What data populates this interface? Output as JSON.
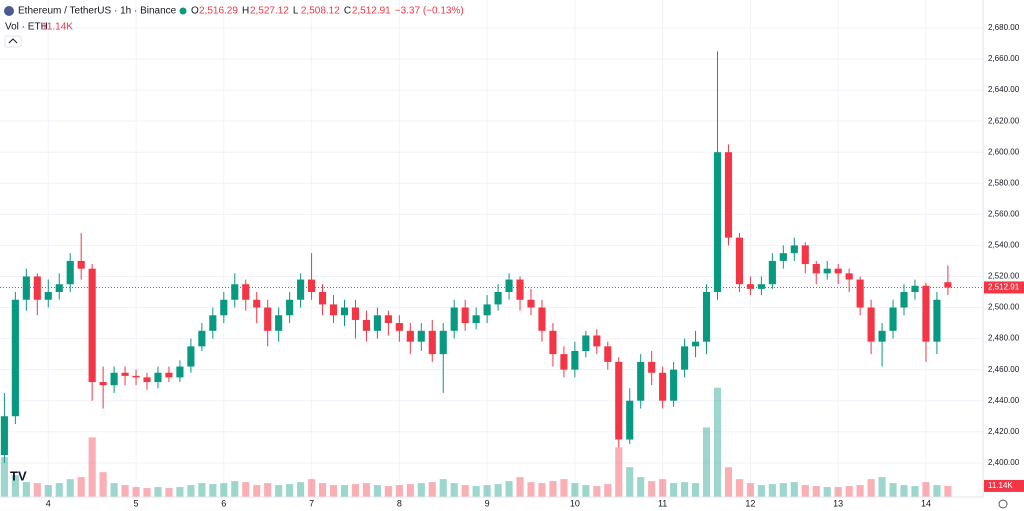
{
  "header": {
    "title": "Ethereum / TetherUS · 1h · Binance",
    "ohlc": [
      {
        "key": "O",
        "value": "2,516.29"
      },
      {
        "key": "H",
        "value": "2,527.12"
      },
      {
        "key": "L",
        "value": "2,508.12"
      },
      {
        "key": "C",
        "value": "2,512.91"
      }
    ],
    "change": "−3.37 (−0.13%)",
    "volume_name": "Vol · ETH",
    "volume_value": "11.14K"
  },
  "chart_data": {
    "type": "candlestick",
    "up_color": "#089981",
    "down_color": "#f23645",
    "grid": true,
    "xlim": [
      3.45,
      14.65
    ],
    "xticks": [
      4,
      5,
      6,
      7,
      8,
      9,
      10,
      11,
      12,
      13,
      14
    ],
    "ylim": [
      2378,
      2698
    ],
    "yticks": [
      {
        "value": 2400,
        "label": "2,400.00"
      },
      {
        "value": 2420,
        "label": "2,420.00"
      },
      {
        "value": 2440,
        "label": "2,440.00"
      },
      {
        "value": 2460,
        "label": "2,460.00"
      },
      {
        "value": 2480,
        "label": "2,480.00"
      },
      {
        "value": 2500,
        "label": "2,500.00"
      },
      {
        "value": 2520,
        "label": "2,520.00"
      },
      {
        "value": 2540,
        "label": "2,540.00"
      },
      {
        "value": 2560,
        "label": "2,560.00"
      },
      {
        "value": 2580,
        "label": "2,580.00"
      },
      {
        "value": 2600,
        "label": "2,600.00"
      },
      {
        "value": 2620,
        "label": "2,620.00"
      },
      {
        "value": 2640,
        "label": "2,640.00"
      },
      {
        "value": 2660,
        "label": "2,660.00"
      },
      {
        "value": 2680,
        "label": "2,680.00"
      }
    ],
    "volume_ylim": [
      0,
      500
    ],
    "x": [
      3.5,
      3.625,
      3.75,
      3.875,
      4,
      4.125,
      4.25,
      4.375,
      4.5,
      4.625,
      4.75,
      4.875,
      5,
      5.125,
      5.25,
      5.375,
      5.5,
      5.625,
      5.75,
      5.875,
      6,
      6.125,
      6.25,
      6.375,
      6.5,
      6.625,
      6.75,
      6.875,
      7,
      7.125,
      7.25,
      7.375,
      7.5,
      7.625,
      7.75,
      7.875,
      8,
      8.125,
      8.25,
      8.375,
      8.5,
      8.625,
      8.75,
      8.875,
      9,
      9.125,
      9.25,
      9.375,
      9.5,
      9.625,
      9.75,
      9.875,
      10,
      10.125,
      10.25,
      10.375,
      10.5,
      10.625,
      10.75,
      10.875,
      11,
      11.125,
      11.25,
      11.375,
      11.5,
      11.625,
      11.75,
      11.875,
      12,
      12.125,
      12.25,
      12.375,
      12.5,
      12.625,
      12.75,
      12.875,
      13,
      13.125,
      13.25,
      13.375,
      13.5,
      13.625,
      13.75,
      13.875,
      14,
      14.125,
      14.25
    ],
    "open": [
      2405,
      2430,
      2505,
      2520,
      2505,
      2510,
      2515,
      2530,
      2525,
      2452,
      2450,
      2458,
      2456,
      2455,
      2452,
      2458,
      2455,
      2462,
      2475,
      2485,
      2495,
      2505,
      2515,
      2505,
      2500,
      2485,
      2495,
      2505,
      2518,
      2510,
      2502,
      2495,
      2500,
      2492,
      2485,
      2495,
      2490,
      2485,
      2478,
      2485,
      2470,
      2485,
      2500,
      2490,
      2495,
      2502,
      2510,
      2518,
      2505,
      2500,
      2485,
      2470,
      2460,
      2472,
      2482,
      2475,
      2465,
      2415,
      2440,
      2465,
      2458,
      2440,
      2460,
      2475,
      2478,
      2510,
      2600,
      2545,
      2515,
      2512,
      2515,
      2530,
      2535,
      2540,
      2528,
      2522,
      2525,
      2522,
      2518,
      2500,
      2478,
      2485,
      2500,
      2510,
      2514,
      2478,
      2516.29
    ],
    "high": [
      2445,
      2510,
      2525,
      2522,
      2518,
      2522,
      2535,
      2548,
      2528,
      2462,
      2462,
      2462,
      2460,
      2458,
      2462,
      2462,
      2466,
      2480,
      2490,
      2500,
      2510,
      2522,
      2518,
      2510,
      2505,
      2500,
      2510,
      2522,
      2535,
      2515,
      2508,
      2505,
      2505,
      2498,
      2500,
      2498,
      2495,
      2490,
      2490,
      2492,
      2490,
      2505,
      2505,
      2500,
      2508,
      2515,
      2522,
      2520,
      2512,
      2505,
      2490,
      2475,
      2478,
      2485,
      2486,
      2478,
      2468,
      2448,
      2470,
      2472,
      2462,
      2465,
      2480,
      2485,
      2515,
      2665,
      2605,
      2548,
      2520,
      2520,
      2535,
      2540,
      2545,
      2542,
      2530,
      2530,
      2528,
      2525,
      2520,
      2505,
      2490,
      2505,
      2515,
      2518,
      2516,
      2510,
      2527.12
    ],
    "low": [
      2400,
      2425,
      2498,
      2495,
      2500,
      2505,
      2510,
      2518,
      2440,
      2435,
      2445,
      2450,
      2450,
      2447,
      2448,
      2452,
      2452,
      2458,
      2472,
      2480,
      2490,
      2500,
      2498,
      2490,
      2475,
      2478,
      2490,
      2500,
      2505,
      2495,
      2490,
      2488,
      2480,
      2478,
      2480,
      2482,
      2478,
      2470,
      2472,
      2465,
      2445,
      2480,
      2485,
      2486,
      2490,
      2498,
      2505,
      2498,
      2495,
      2478,
      2462,
      2455,
      2455,
      2468,
      2470,
      2460,
      2410,
      2412,
      2435,
      2450,
      2435,
      2436,
      2455,
      2468,
      2470,
      2505,
      2540,
      2510,
      2508,
      2508,
      2512,
      2525,
      2530,
      2522,
      2515,
      2518,
      2515,
      2510,
      2495,
      2470,
      2462,
      2480,
      2495,
      2505,
      2465,
      2470,
      2508.12
    ],
    "close": [
      2430,
      2505,
      2520,
      2505,
      2510,
      2515,
      2530,
      2525,
      2452,
      2450,
      2458,
      2456,
      2455,
      2452,
      2458,
      2455,
      2462,
      2475,
      2485,
      2495,
      2505,
      2515,
      2505,
      2500,
      2485,
      2495,
      2505,
      2518,
      2510,
      2502,
      2495,
      2500,
      2492,
      2485,
      2495,
      2490,
      2485,
      2478,
      2485,
      2470,
      2485,
      2500,
      2490,
      2495,
      2502,
      2510,
      2518,
      2505,
      2500,
      2485,
      2470,
      2460,
      2472,
      2482,
      2475,
      2465,
      2415,
      2440,
      2465,
      2458,
      2440,
      2460,
      2475,
      2478,
      2510,
      2600,
      2545,
      2515,
      2512,
      2515,
      2530,
      2535,
      2540,
      2528,
      2522,
      2525,
      2522,
      2518,
      2500,
      2478,
      2485,
      2500,
      2510,
      2514,
      2478,
      2505,
      2512.91
    ],
    "volume": [
      40,
      22,
      15,
      14,
      12,
      14,
      18,
      20,
      60,
      25,
      14,
      12,
      10,
      9,
      10,
      9,
      10,
      12,
      14,
      13,
      14,
      16,
      15,
      12,
      14,
      12,
      13,
      15,
      18,
      14,
      12,
      12,
      13,
      14,
      12,
      11,
      12,
      13,
      14,
      15,
      18,
      14,
      12,
      11,
      12,
      13,
      16,
      20,
      15,
      14,
      16,
      18,
      14,
      12,
      11,
      13,
      50,
      30,
      20,
      16,
      18,
      14,
      15,
      14,
      70,
      110,
      30,
      18,
      14,
      12,
      13,
      14,
      15,
      12,
      11,
      10,
      10,
      11,
      12,
      18,
      20,
      14,
      12,
      11,
      15,
      12,
      11.14
    ]
  }
}
